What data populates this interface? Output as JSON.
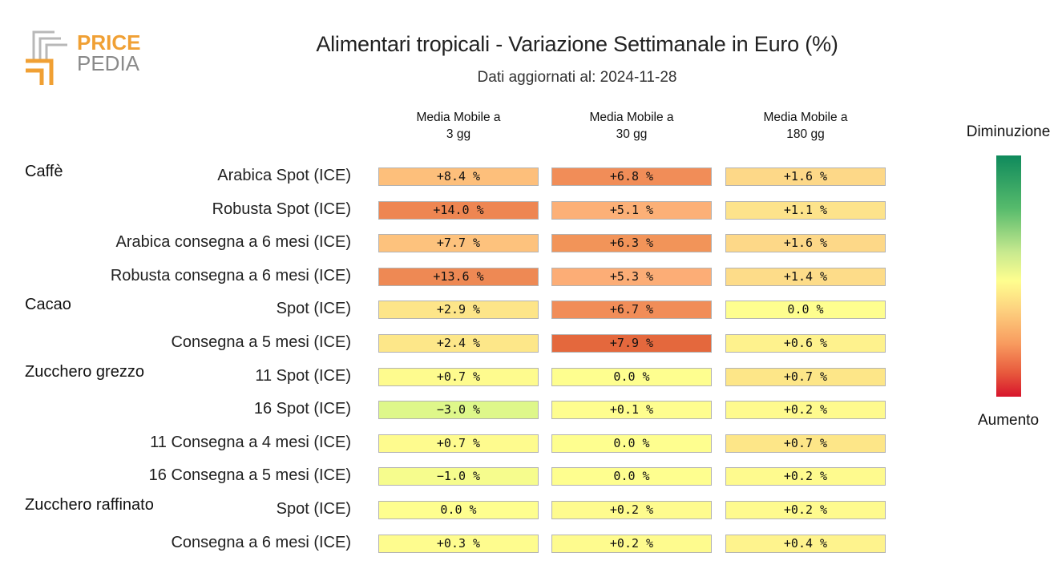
{
  "logo": {
    "line1": "PRICE",
    "line2": "PEDIA",
    "accent": "#f0a034",
    "grey": "#8a8a8a"
  },
  "title": "Alimentari tropicali - Variazione Settimanale in Euro (%)",
  "subtitle": "Dati aggiornati al: 2024-11-28",
  "legend": {
    "top": "Diminuzione",
    "bottom": "Aumento"
  },
  "chart_data": {
    "type": "heatmap",
    "columns": [
      "Media Mobile a\n3 gg",
      "Media Mobile a\n30 gg",
      "Media Mobile a\n180 gg"
    ],
    "groups": [
      {
        "name": "Caffè",
        "rows": [
          {
            "label": "Arabica Spot (ICE)",
            "cells": [
              {
                "text": "+8.4 %",
                "value": 8.4,
                "color": "#fdbf7b"
              },
              {
                "text": "+6.8 %",
                "value": 6.8,
                "color": "#f18d58"
              },
              {
                "text": "+1.6 %",
                "value": 1.6,
                "color": "#fdd888"
              }
            ]
          },
          {
            "label": "Robusta Spot (ICE)",
            "cells": [
              {
                "text": "+14.0 %",
                "value": 14.0,
                "color": "#ee8652"
              },
              {
                "text": "+5.1 %",
                "value": 5.1,
                "color": "#fcb077"
              },
              {
                "text": "+1.1 %",
                "value": 1.1,
                "color": "#fde38b"
              }
            ]
          },
          {
            "label": "Arabica consegna a 6 mesi (ICE)",
            "cells": [
              {
                "text": "+7.7 %",
                "value": 7.7,
                "color": "#fdc27d"
              },
              {
                "text": "+6.3 %",
                "value": 6.3,
                "color": "#f29459"
              },
              {
                "text": "+1.6 %",
                "value": 1.6,
                "color": "#fdd888"
              }
            ]
          },
          {
            "label": "Robusta consegna a 6 mesi (ICE)",
            "cells": [
              {
                "text": "+13.6 %",
                "value": 13.6,
                "color": "#ee8954"
              },
              {
                "text": "+5.3 %",
                "value": 5.3,
                "color": "#fcad76"
              },
              {
                "text": "+1.4 %",
                "value": 1.4,
                "color": "#fddc89"
              }
            ]
          }
        ]
      },
      {
        "name": "Cacao",
        "rows": [
          {
            "label": "Spot (ICE)",
            "cells": [
              {
                "text": "+2.9 %",
                "value": 2.9,
                "color": "#fde589"
              },
              {
                "text": "+6.7 %",
                "value": 6.7,
                "color": "#f18d58"
              },
              {
                "text": "0.0 %",
                "value": 0.0,
                "color": "#fefe8f"
              }
            ]
          },
          {
            "label": "Consegna a 5 mesi (ICE)",
            "cells": [
              {
                "text": "+2.4 %",
                "value": 2.4,
                "color": "#fde789"
              },
              {
                "text": "+7.9 %",
                "value": 7.9,
                "color": "#e4683d"
              },
              {
                "text": "+0.6 %",
                "value": 0.6,
                "color": "#fef28d"
              }
            ]
          }
        ]
      },
      {
        "name": "Zucchero grezzo",
        "rows": [
          {
            "label": "11 Spot (ICE)",
            "cells": [
              {
                "text": "+0.7 %",
                "value": 0.7,
                "color": "#fefb8e"
              },
              {
                "text": "0.0 %",
                "value": 0.0,
                "color": "#fefe8f"
              },
              {
                "text": "+0.7 %",
                "value": 0.7,
                "color": "#fde688"
              }
            ]
          },
          {
            "label": "16 Spot (ICE)",
            "cells": [
              {
                "text": "−3.0 %",
                "value": -3.0,
                "color": "#def78a"
              },
              {
                "text": "+0.1 %",
                "value": 0.1,
                "color": "#fefd8f"
              },
              {
                "text": "+0.2 %",
                "value": 0.2,
                "color": "#fefa8e"
              }
            ]
          },
          {
            "label": "11 Consegna a 4 mesi (ICE)",
            "cells": [
              {
                "text": "+0.7 %",
                "value": 0.7,
                "color": "#fefb8e"
              },
              {
                "text": "0.0 %",
                "value": 0.0,
                "color": "#fefe8f"
              },
              {
                "text": "+0.7 %",
                "value": 0.7,
                "color": "#fde688"
              }
            ]
          },
          {
            "label": "16 Consegna a 5 mesi (ICE)",
            "cells": [
              {
                "text": "−1.0 %",
                "value": -1.0,
                "color": "#f6fc8d"
              },
              {
                "text": "0.0 %",
                "value": 0.0,
                "color": "#fefe8f"
              },
              {
                "text": "+0.2 %",
                "value": 0.2,
                "color": "#fefa8e"
              }
            ]
          }
        ]
      },
      {
        "name": "Zucchero raffinato",
        "rows": [
          {
            "label": "Spot (ICE)",
            "cells": [
              {
                "text": "0.0 %",
                "value": 0.0,
                "color": "#fefe8f"
              },
              {
                "text": "+0.2 %",
                "value": 0.2,
                "color": "#fefb8e"
              },
              {
                "text": "+0.2 %",
                "value": 0.2,
                "color": "#fefa8e"
              }
            ]
          },
          {
            "label": "Consegna a 6 mesi (ICE)",
            "cells": [
              {
                "text": "+0.3 %",
                "value": 0.3,
                "color": "#fefc8e"
              },
              {
                "text": "+0.2 %",
                "value": 0.2,
                "color": "#fefb8e"
              },
              {
                "text": "+0.4 %",
                "value": 0.4,
                "color": "#fef38d"
              }
            ]
          }
        ]
      }
    ]
  }
}
